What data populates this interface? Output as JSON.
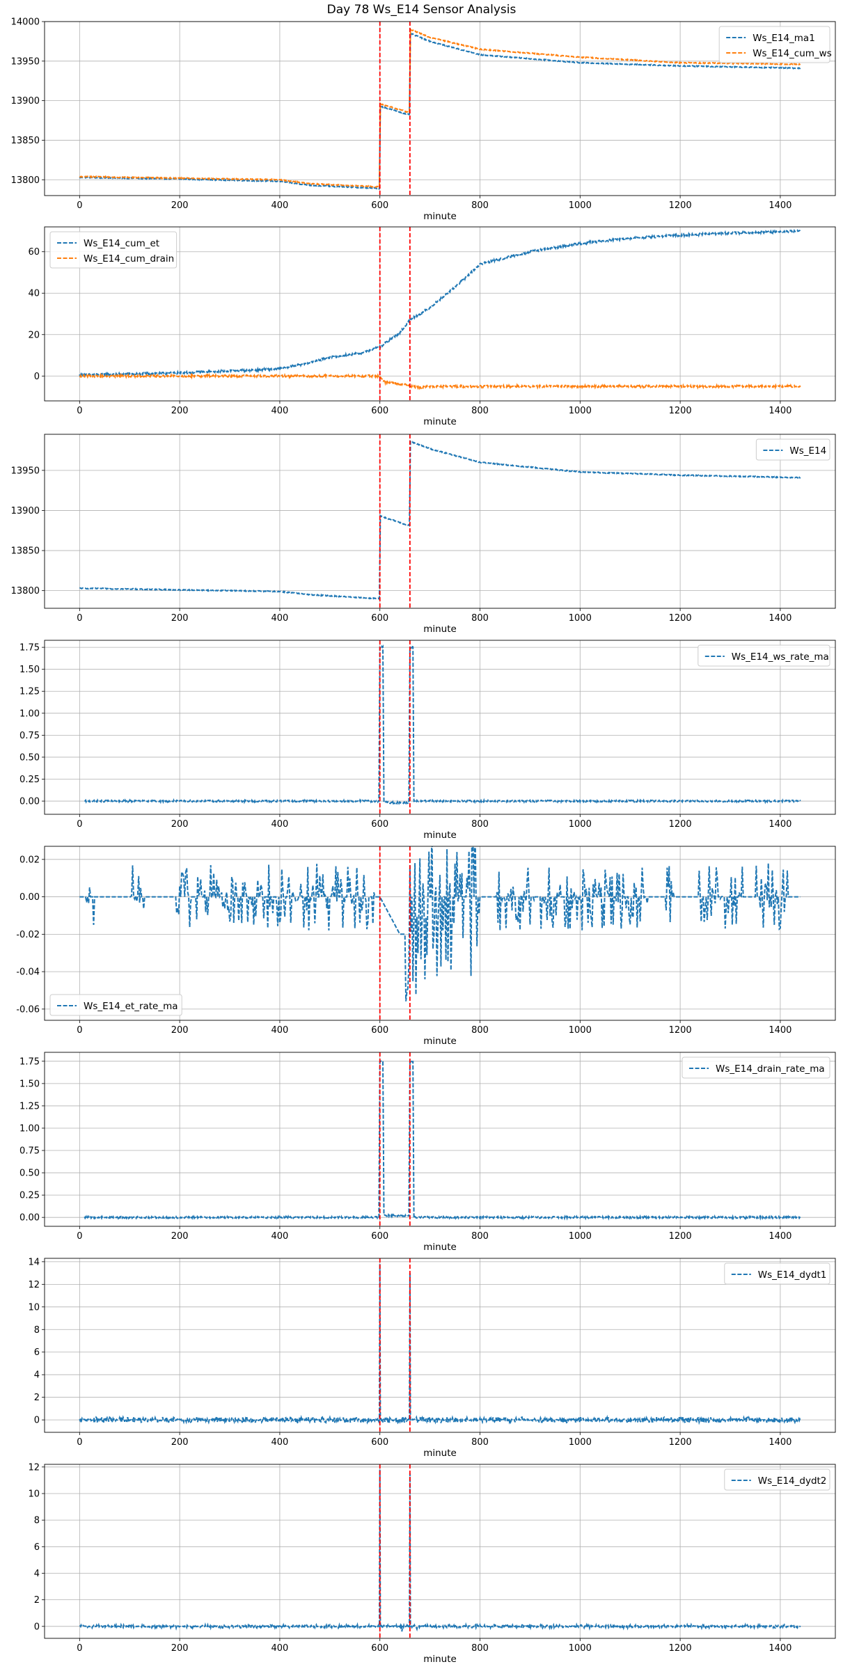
{
  "figure": {
    "title": "Day 78 Ws_E14 Sensor Analysis"
  },
  "colors": {
    "blue": "#1f77b4",
    "orange": "#ff7f0e",
    "red": "#ff0000",
    "grid": "#b0b0b0"
  },
  "chart_data": [
    {
      "type": "line",
      "xlabel": "minute",
      "xlim": [
        -70,
        1510
      ],
      "xticks": [
        0,
        200,
        400,
        600,
        800,
        1000,
        1200,
        1400
      ],
      "ylim": [
        13780,
        14000
      ],
      "yticks": [
        13800,
        13850,
        13900,
        13950,
        14000
      ],
      "ytick_labels": [
        "13800",
        "13850",
        "13900",
        "13950",
        "14000"
      ],
      "legend": "top-right",
      "vlines": [
        600,
        660
      ],
      "series": [
        {
          "name": "Ws_E14_ma1",
          "color": "blue",
          "points": [
            [
              0,
              13803
            ],
            [
              200,
              13801
            ],
            [
              400,
              13798
            ],
            [
              460,
              13793
            ],
            [
              599,
              13789
            ],
            [
              601,
              13893
            ],
            [
              659,
              13882
            ],
            [
              661,
              13985
            ],
            [
              700,
              13975
            ],
            [
              800,
              13958
            ],
            [
              1000,
              13948
            ],
            [
              1200,
              13944
            ],
            [
              1440,
              13941
            ]
          ]
        },
        {
          "name": "Ws_E14_cum_ws",
          "color": "orange",
          "points": [
            [
              0,
              13804
            ],
            [
              200,
              13802
            ],
            [
              400,
              13800
            ],
            [
              460,
              13795
            ],
            [
              599,
              13791
            ],
            [
              601,
              13896
            ],
            [
              659,
              13885
            ],
            [
              661,
              13990
            ],
            [
              700,
              13980
            ],
            [
              800,
              13965
            ],
            [
              1000,
              13955
            ],
            [
              1200,
              13948
            ],
            [
              1440,
              13946
            ]
          ]
        }
      ]
    },
    {
      "type": "line",
      "xlabel": "minute",
      "xlim": [
        -70,
        1510
      ],
      "xticks": [
        0,
        200,
        400,
        600,
        800,
        1000,
        1200,
        1400
      ],
      "ylim": [
        -12,
        72
      ],
      "yticks": [
        0,
        20,
        40,
        60
      ],
      "ytick_labels": [
        "0",
        "20",
        "40",
        "60"
      ],
      "legend": "top-left",
      "vlines": [
        600,
        660
      ],
      "series": [
        {
          "name": "Ws_E14_cum_et",
          "color": "blue",
          "points": [
            [
              0,
              0.5
            ],
            [
              200,
              1.5
            ],
            [
              400,
              3.5
            ],
            [
              450,
              6
            ],
            [
              500,
              9
            ],
            [
              560,
              11
            ],
            [
              600,
              14
            ],
            [
              640,
              21
            ],
            [
              660,
              27
            ],
            [
              700,
              33
            ],
            [
              760,
              45
            ],
            [
              800,
              54
            ],
            [
              900,
              60
            ],
            [
              1000,
              64
            ],
            [
              1100,
              66.5
            ],
            [
              1200,
              68
            ],
            [
              1300,
              69
            ],
            [
              1440,
              70
            ]
          ]
        },
        {
          "name": "Ws_E14_cum_drain",
          "color": "orange",
          "points": [
            [
              0,
              0
            ],
            [
              599,
              0
            ],
            [
              610,
              -3
            ],
            [
              650,
              -4
            ],
            [
              660,
              -5
            ],
            [
              680,
              -5.5
            ],
            [
              700,
              -5
            ],
            [
              1440,
              -5
            ]
          ]
        }
      ]
    },
    {
      "type": "line",
      "xlabel": "minute",
      "xlim": [
        -70,
        1510
      ],
      "xticks": [
        0,
        200,
        400,
        600,
        800,
        1000,
        1200,
        1400
      ],
      "ylim": [
        13778,
        13995
      ],
      "yticks": [
        13800,
        13850,
        13900,
        13950
      ],
      "ytick_labels": [
        "13800",
        "13850",
        "13900",
        "13950"
      ],
      "legend": "top-right",
      "vlines": [
        600,
        660
      ],
      "series": [
        {
          "name": "Ws_E14",
          "color": "blue",
          "points": [
            [
              0,
              13803
            ],
            [
              200,
              13801
            ],
            [
              400,
              13799
            ],
            [
              460,
              13795
            ],
            [
              599,
              13790
            ],
            [
              601,
              13893
            ],
            [
              659,
              13881
            ],
            [
              661,
              13986
            ],
            [
              700,
              13977
            ],
            [
              800,
              13960
            ],
            [
              1000,
              13948
            ],
            [
              1200,
              13944
            ],
            [
              1440,
              13941
            ]
          ]
        }
      ]
    },
    {
      "type": "line",
      "xlabel": "minute",
      "xlim": [
        -70,
        1510
      ],
      "xticks": [
        0,
        200,
        400,
        600,
        800,
        1000,
        1200,
        1400
      ],
      "ylim": [
        -0.15,
        1.83
      ],
      "yticks": [
        0,
        0.25,
        0.5,
        0.75,
        1.0,
        1.25,
        1.5,
        1.75
      ],
      "ytick_labels": [
        "0.00",
        "0.25",
        "0.50",
        "0.75",
        "1.00",
        "1.25",
        "1.50",
        "1.75"
      ],
      "legend": "top-right",
      "vlines": [
        600,
        660
      ],
      "series": [
        {
          "name": "Ws_E14_ws_rate_ma",
          "color": "blue",
          "points": [
            [
              10,
              0
            ],
            [
              598,
              0
            ],
            [
              600,
              1.75
            ],
            [
              606,
              1.75
            ],
            [
              608,
              0
            ],
            [
              620,
              -0.02
            ],
            [
              658,
              -0.02
            ],
            [
              660,
              1.75
            ],
            [
              666,
              1.75
            ],
            [
              668,
              0
            ],
            [
              1440,
              0
            ]
          ]
        }
      ]
    },
    {
      "type": "line",
      "xlabel": "minute",
      "xlim": [
        -70,
        1510
      ],
      "xticks": [
        0,
        200,
        400,
        600,
        800,
        1000,
        1200,
        1400
      ],
      "ylim": [
        -0.066,
        0.027
      ],
      "yticks": [
        -0.06,
        -0.04,
        -0.02,
        0.0,
        0.02
      ],
      "ytick_labels": [
        "-0.06",
        "-0.04",
        "-0.02",
        "0.00",
        "0.02"
      ],
      "legend": "bottom-left",
      "vlines": [
        600,
        660
      ],
      "series": [
        {
          "name": "Ws_E14_et_rate_ma",
          "color": "blue",
          "points": [
            [
              0,
              0
            ],
            [
              600,
              0
            ],
            [
              640,
              -0.02
            ],
            [
              660,
              -0.02
            ],
            [
              690,
              0
            ],
            [
              1440,
              0
            ]
          ]
        }
      ]
    },
    {
      "type": "line",
      "xlabel": "minute",
      "xlim": [
        -70,
        1510
      ],
      "xticks": [
        0,
        200,
        400,
        600,
        800,
        1000,
        1200,
        1400
      ],
      "ylim": [
        -0.1,
        1.85
      ],
      "yticks": [
        0,
        0.25,
        0.5,
        0.75,
        1.0,
        1.25,
        1.5,
        1.75
      ],
      "ytick_labels": [
        "0.00",
        "0.25",
        "0.50",
        "0.75",
        "1.00",
        "1.25",
        "1.50",
        "1.75"
      ],
      "legend": "top-right",
      "vlines": [
        600,
        660
      ],
      "series": [
        {
          "name": "Ws_E14_drain_rate_ma",
          "color": "blue",
          "points": [
            [
              10,
              0
            ],
            [
              598,
              0
            ],
            [
              600,
              1.75
            ],
            [
              606,
              1.75
            ],
            [
              608,
              0.02
            ],
            [
              658,
              0.02
            ],
            [
              660,
              1.75
            ],
            [
              666,
              1.75
            ],
            [
              668,
              0
            ],
            [
              1440,
              0
            ]
          ]
        }
      ]
    },
    {
      "type": "line",
      "xlabel": "minute",
      "xlim": [
        -70,
        1510
      ],
      "xticks": [
        0,
        200,
        400,
        600,
        800,
        1000,
        1200,
        1400
      ],
      "ylim": [
        -1.1,
        14.3
      ],
      "yticks": [
        0,
        2,
        4,
        6,
        8,
        10,
        12,
        14
      ],
      "ytick_labels": [
        "0",
        "2",
        "4",
        "6",
        "8",
        "10",
        "12",
        "14"
      ],
      "legend": "top-right",
      "vlines": [
        600,
        660
      ],
      "series": [
        {
          "name": "Ws_E14_dydt1",
          "color": "blue",
          "points": [
            [
              0,
              0
            ],
            [
              599,
              0
            ],
            [
              600,
              13.8
            ],
            [
              601,
              0
            ],
            [
              659,
              0
            ],
            [
              660,
              13
            ],
            [
              661,
              0
            ],
            [
              1440,
              0
            ]
          ]
        }
      ]
    },
    {
      "type": "line",
      "xlabel": "minute",
      "xlim": [
        -70,
        1510
      ],
      "xticks": [
        0,
        200,
        400,
        600,
        800,
        1000,
        1200,
        1400
      ],
      "ylim": [
        -0.9,
        12.2
      ],
      "yticks": [
        0,
        2,
        4,
        6,
        8,
        10,
        12
      ],
      "ytick_labels": [
        "0",
        "2",
        "4",
        "6",
        "8",
        "10",
        "12"
      ],
      "legend": "top-right",
      "vlines": [
        600,
        660
      ],
      "series": [
        {
          "name": "Ws_E14_dydt2",
          "color": "blue",
          "points": [
            [
              0,
              0
            ],
            [
              599,
              0
            ],
            [
              600,
              11.8
            ],
            [
              601,
              0
            ],
            [
              659,
              0
            ],
            [
              660,
              11.5
            ],
            [
              661,
              0
            ],
            [
              1440,
              0
            ]
          ]
        }
      ]
    }
  ]
}
